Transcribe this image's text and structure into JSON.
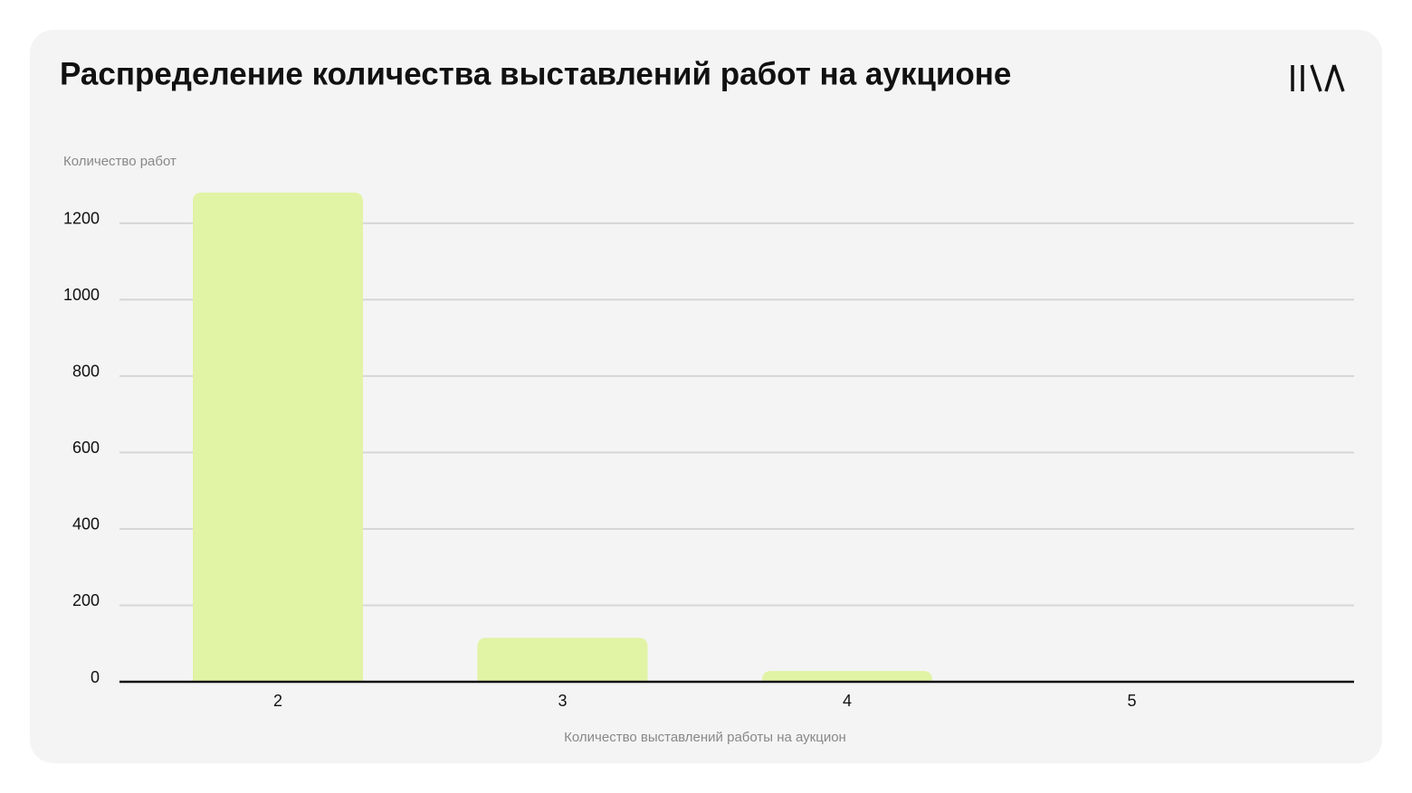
{
  "chart_data": {
    "type": "bar",
    "title": "Распределение количества выставлений работ на аукционе",
    "y_label": "Количество работ",
    "x_label": "Количество выставлений работы на аукцион",
    "categories": [
      "2",
      "3",
      "4",
      "5"
    ],
    "values": [
      1280,
      115,
      28,
      1
    ],
    "color": "#e1f3a5",
    "ylim": [
      0,
      1280
    ],
    "yticks": [
      0,
      200,
      400,
      600,
      800,
      1000,
      1200
    ],
    "grid": true
  }
}
